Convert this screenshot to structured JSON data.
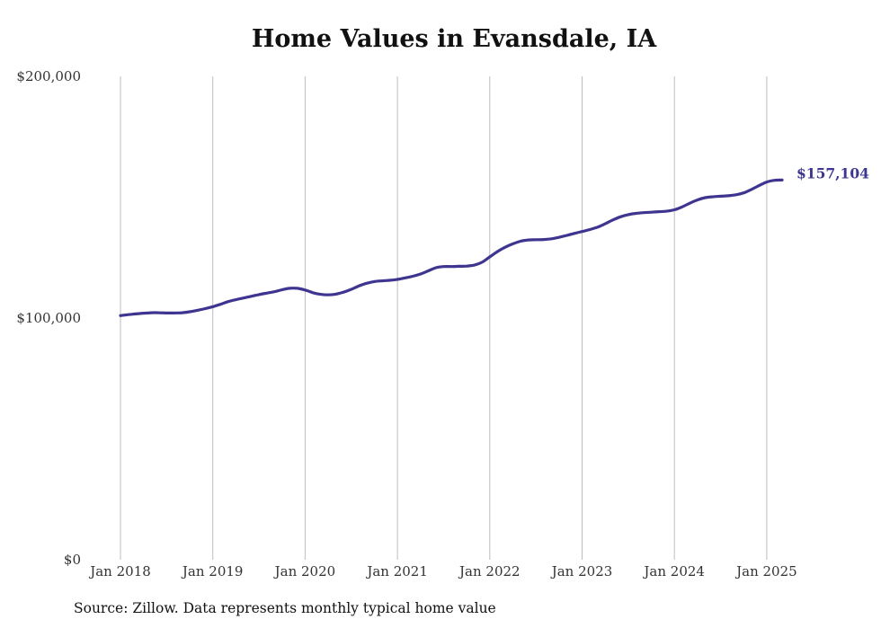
{
  "chart_data": {
    "type": "line",
    "title": "Home Values in Evansdale, IA",
    "source": "Source: Zillow. Data represents monthly typical home value",
    "xlabel": "",
    "ylabel": "",
    "x_ticks": [
      "Jan 2018",
      "Jan 2019",
      "Jan 2020",
      "Jan 2021",
      "Jan 2022",
      "Jan 2023",
      "Jan 2024",
      "Jan 2025"
    ],
    "y_ticks": [
      "$0",
      "$100,000",
      "$200,000"
    ],
    "ylim": [
      0,
      200000
    ],
    "xlim": [
      "2018-01",
      "2025-03"
    ],
    "grid": "vertical",
    "line_color": "#3d3590",
    "end_label": "$157,104",
    "series": [
      {
        "points": [
          [
            "2018-01",
            101000
          ],
          [
            "2018-02",
            101400
          ],
          [
            "2018-03",
            101700
          ],
          [
            "2018-04",
            102000
          ],
          [
            "2018-05",
            102200
          ],
          [
            "2018-06",
            102200
          ],
          [
            "2018-07",
            102100
          ],
          [
            "2018-08",
            102100
          ],
          [
            "2018-09",
            102200
          ],
          [
            "2018-10",
            102600
          ],
          [
            "2018-11",
            103200
          ],
          [
            "2018-12",
            103900
          ],
          [
            "2019-01",
            104700
          ],
          [
            "2019-02",
            105700
          ],
          [
            "2019-03",
            106800
          ],
          [
            "2019-04",
            107600
          ],
          [
            "2019-05",
            108300
          ],
          [
            "2019-06",
            109000
          ],
          [
            "2019-07",
            109700
          ],
          [
            "2019-08",
            110300
          ],
          [
            "2019-09",
            110900
          ],
          [
            "2019-10",
            111700
          ],
          [
            "2019-11",
            112300
          ],
          [
            "2019-12",
            112300
          ],
          [
            "2020-01",
            111600
          ],
          [
            "2020-02",
            110500
          ],
          [
            "2020-03",
            109800
          ],
          [
            "2020-04",
            109600
          ],
          [
            "2020-05",
            109900
          ],
          [
            "2020-06",
            110700
          ],
          [
            "2020-07",
            111900
          ],
          [
            "2020-08",
            113300
          ],
          [
            "2020-09",
            114400
          ],
          [
            "2020-10",
            115100
          ],
          [
            "2020-11",
            115400
          ],
          [
            "2020-12",
            115600
          ],
          [
            "2021-01",
            116000
          ],
          [
            "2021-02",
            116600
          ],
          [
            "2021-03",
            117300
          ],
          [
            "2021-04",
            118200
          ],
          [
            "2021-05",
            119500
          ],
          [
            "2021-06",
            120800
          ],
          [
            "2021-07",
            121300
          ],
          [
            "2021-08",
            121300
          ],
          [
            "2021-09",
            121400
          ],
          [
            "2021-10",
            121500
          ],
          [
            "2021-11",
            121900
          ],
          [
            "2021-12",
            123100
          ],
          [
            "2022-01",
            125300
          ],
          [
            "2022-02",
            127500
          ],
          [
            "2022-03",
            129300
          ],
          [
            "2022-04",
            130700
          ],
          [
            "2022-05",
            131800
          ],
          [
            "2022-06",
            132300
          ],
          [
            "2022-07",
            132400
          ],
          [
            "2022-08",
            132500
          ],
          [
            "2022-09",
            132800
          ],
          [
            "2022-10",
            133400
          ],
          [
            "2022-11",
            134200
          ],
          [
            "2022-12",
            135000
          ],
          [
            "2023-01",
            135800
          ],
          [
            "2023-02",
            136600
          ],
          [
            "2023-03",
            137600
          ],
          [
            "2023-04",
            139000
          ],
          [
            "2023-05",
            140600
          ],
          [
            "2023-06",
            141900
          ],
          [
            "2023-07",
            142800
          ],
          [
            "2023-08",
            143300
          ],
          [
            "2023-09",
            143600
          ],
          [
            "2023-10",
            143800
          ],
          [
            "2023-11",
            144000
          ],
          [
            "2023-12",
            144200
          ],
          [
            "2024-01",
            144800
          ],
          [
            "2024-02",
            146000
          ],
          [
            "2024-03",
            147500
          ],
          [
            "2024-04",
            148900
          ],
          [
            "2024-05",
            149800
          ],
          [
            "2024-06",
            150200
          ],
          [
            "2024-07",
            150400
          ],
          [
            "2024-08",
            150600
          ],
          [
            "2024-09",
            151000
          ],
          [
            "2024-10",
            151800
          ],
          [
            "2024-11",
            153200
          ],
          [
            "2024-12",
            154800
          ],
          [
            "2025-01",
            156300
          ],
          [
            "2025-02",
            157000
          ],
          [
            "2025-03",
            157104
          ]
        ]
      }
    ]
  }
}
